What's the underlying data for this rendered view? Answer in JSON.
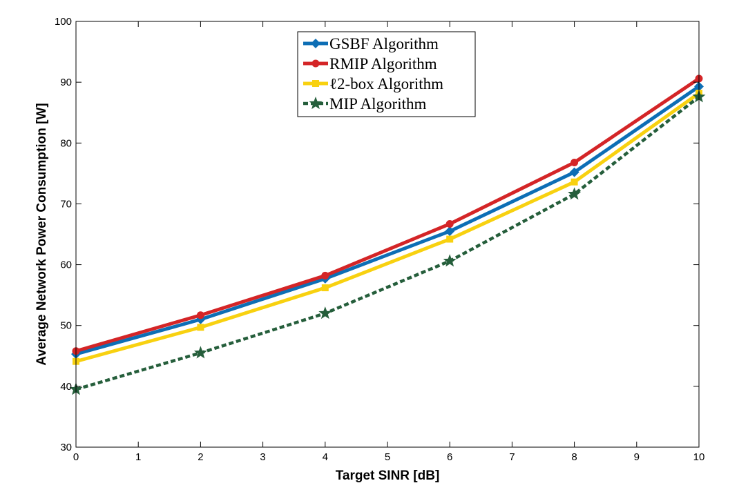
{
  "chart_data": {
    "type": "line",
    "title": "",
    "xlabel": "Target SINR [dB]",
    "ylabel": "Average Network Power Consumption [W]",
    "xlim": [
      0,
      10
    ],
    "ylim": [
      30,
      100
    ],
    "xticks": [
      "0",
      "1",
      "2",
      "3",
      "4",
      "5",
      "6",
      "7",
      "8",
      "9",
      "10"
    ],
    "yticks": [
      "30",
      "40",
      "50",
      "60",
      "70",
      "80",
      "90",
      "100"
    ],
    "grid": false,
    "legend_position": "top-center",
    "x": [
      0,
      2,
      4,
      6,
      8,
      10
    ],
    "series": [
      {
        "name": "GSBF Algorithm",
        "values": [
          45.3,
          51.0,
          57.7,
          65.5,
          75.2,
          89.3
        ],
        "color": "#0d6eb5",
        "marker": "diamond",
        "line_style": "solid"
      },
      {
        "name": "RMIP Algorithm",
        "values": [
          45.8,
          51.7,
          58.2,
          66.7,
          76.8,
          90.6
        ],
        "color": "#d42527",
        "marker": "circle",
        "line_style": "solid"
      },
      {
        "name": "ℓ2-box Algorithm",
        "values": [
          44.1,
          49.7,
          56.2,
          64.2,
          73.6,
          88.2
        ],
        "color": "#f8d110",
        "marker": "square",
        "line_style": "solid"
      },
      {
        "name": "MIP Algorithm",
        "values": [
          39.5,
          45.5,
          52.0,
          60.6,
          71.6,
          87.6
        ],
        "color": "#255e3b",
        "marker": "star",
        "line_style": "dashed"
      }
    ]
  }
}
